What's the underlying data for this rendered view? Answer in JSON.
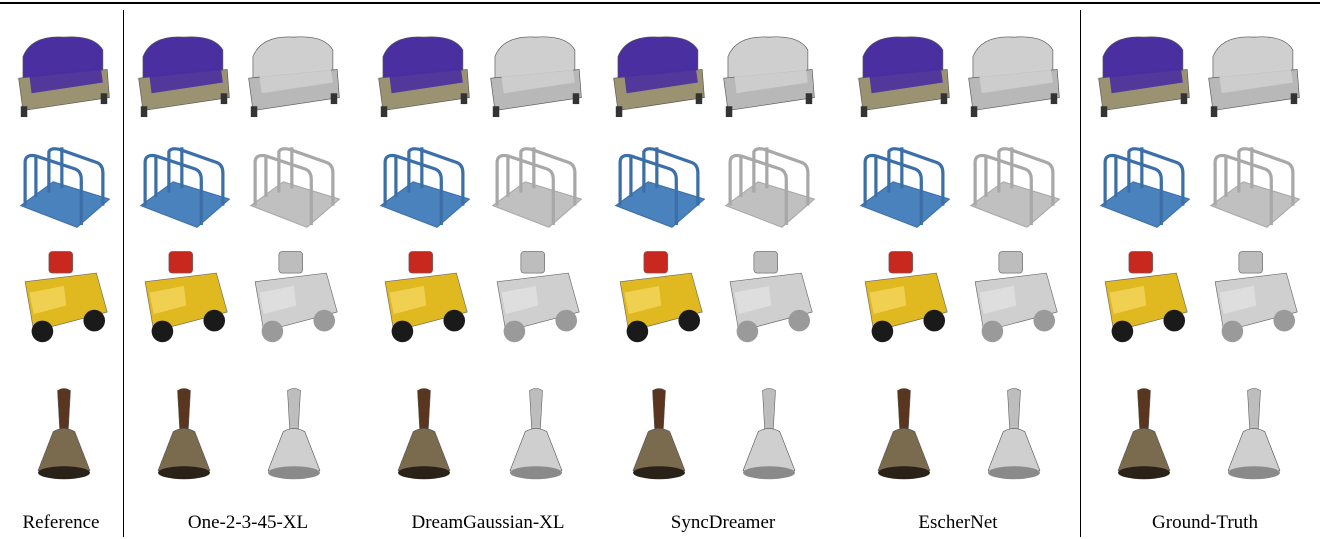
{
  "columns": [
    {
      "label": "Reference",
      "cells": [
        "ref"
      ]
    },
    {
      "label": "One-2-3-45-XL",
      "cells": [
        "tex",
        "geo"
      ]
    },
    {
      "label": "DreamGaussian-XL",
      "cells": [
        "tex",
        "geo"
      ]
    },
    {
      "label": "SyncDreamer",
      "cells": [
        "tex",
        "geo"
      ]
    },
    {
      "label": "EscherNet",
      "cells": [
        "tex",
        "geo"
      ]
    },
    {
      "label": "Ground-Truth",
      "cells": [
        "tex",
        "geo"
      ]
    }
  ],
  "rows": [
    "sofa",
    "rack",
    "toy-truck",
    "bell"
  ],
  "colors": {
    "sofa_fabric": "#4a2fa0",
    "sofa_frame": "#9a9270",
    "rack_blue": "#3c6fa8",
    "truck_yellow": "#e0b820",
    "truck_red": "#c8281e",
    "bell_bronze": "#7a6a4e",
    "bell_handle": "#5a3520",
    "geometry_gray": "#cfcfcf"
  }
}
